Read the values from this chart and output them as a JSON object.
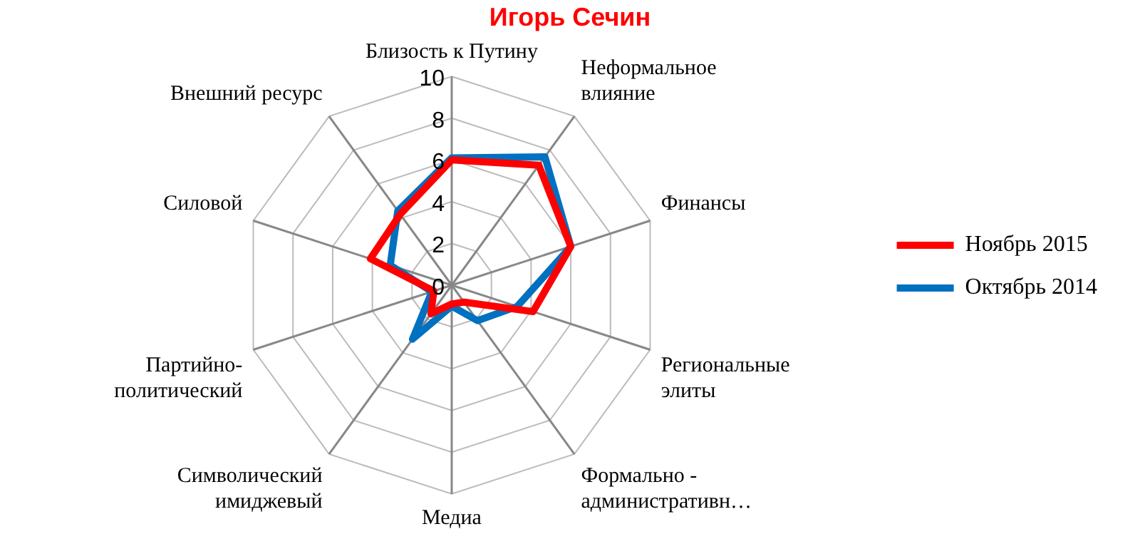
{
  "chart_data": {
    "type": "radar",
    "title": "Игорь Сечин",
    "categories": [
      "Близость к Путину",
      "Неформальное\nвлияние",
      "Финансы",
      "Региональные\nэлиты",
      "Формально -\nадминистративн…",
      "Медиа",
      "Символический\nимиджевый",
      "Партийно-\nполитический",
      "Силовой",
      "Внешний ресурс"
    ],
    "series": [
      {
        "name": "Ноябрь 2015",
        "color": "#ff0000",
        "values": [
          6,
          7.1,
          6,
          4.1,
          1,
          0.9,
          1.7,
          0.9,
          4.1,
          4.2
        ]
      },
      {
        "name": "Октябрь 2014",
        "color": "#0070c0",
        "values": [
          6.1,
          7.6,
          6,
          3.3,
          2.1,
          1,
          3.2,
          1,
          3.1,
          4.4
        ]
      }
    ],
    "ylim": [
      0,
      10
    ],
    "yticks": [
      0,
      2,
      4,
      6,
      8,
      10
    ],
    "grid": true,
    "legend": "right",
    "marker": "none"
  }
}
